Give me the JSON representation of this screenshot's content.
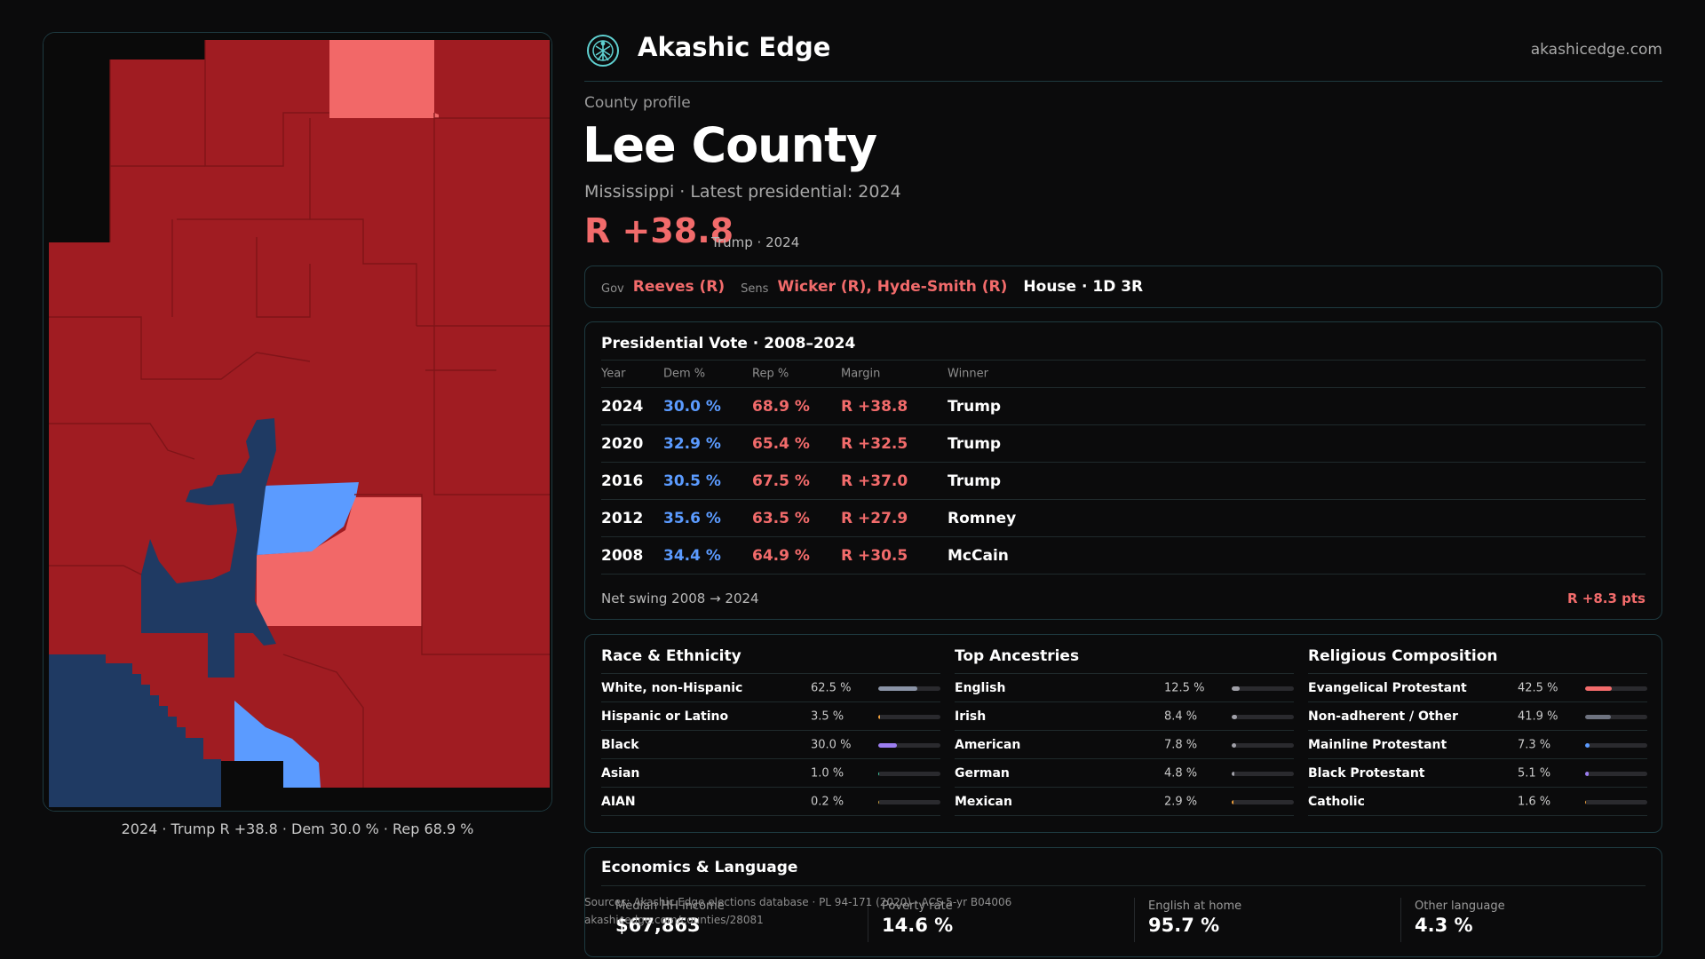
{
  "map": {
    "caption": "2024 · Trump R +38.8 · Dem 30.0 % · Rep 68.9 %",
    "colors": {
      "safe_r": "#a01c22",
      "lean_r": "#f26868",
      "safe_d": "#1f3a63",
      "lean_d": "#5b9bff",
      "background": "#0a0a0a"
    }
  },
  "header": {
    "brand": "Akashic Edge",
    "site": "akashicedge.com",
    "logo_icon": "tree-of-life-icon"
  },
  "profile": {
    "kicker": "County profile",
    "county": "Lee County",
    "subtitle": "Mississippi · Latest presidential: 2024",
    "margin": "R +38.8",
    "margin_note": "Trump · 2024"
  },
  "officials": {
    "gov_label": "Gov",
    "gov": "Reeves (R)",
    "sens_label": "Sens",
    "sens": "Wicker (R), Hyde-Smith (R)",
    "house": "House · 1D 3R"
  },
  "votes": {
    "title": "Presidential Vote · 2008–2024",
    "headers": [
      "Year",
      "Dem %",
      "Rep %",
      "Margin",
      "Winner"
    ],
    "rows": [
      {
        "year": "2024",
        "dem": "30.0 %",
        "rep": "68.9 %",
        "margin": "R +38.8",
        "winner": "Trump"
      },
      {
        "year": "2020",
        "dem": "32.9 %",
        "rep": "65.4 %",
        "margin": "R +32.5",
        "winner": "Trump"
      },
      {
        "year": "2016",
        "dem": "30.5 %",
        "rep": "67.5 %",
        "margin": "R +37.0",
        "winner": "Trump"
      },
      {
        "year": "2012",
        "dem": "35.6 %",
        "rep": "63.5 %",
        "margin": "R +27.9",
        "winner": "Romney"
      },
      {
        "year": "2008",
        "dem": "34.4 %",
        "rep": "64.9 %",
        "margin": "R +30.5",
        "winner": "McCain"
      }
    ],
    "swing_label": "Net swing 2008 → 2024",
    "swing_value": "R +8.3 pts"
  },
  "demographics": [
    {
      "title": "Race & Ethnicity",
      "rows": [
        {
          "label": "White, non-Hispanic",
          "pct": "62.5 %",
          "value": 62.5,
          "color": "#8a93a6"
        },
        {
          "label": "Hispanic or Latino",
          "pct": "3.5 %",
          "value": 3.5,
          "color": "#f0a03c"
        },
        {
          "label": "Black",
          "pct": "30.0 %",
          "value": 30.0,
          "color": "#9b7df0"
        },
        {
          "label": "Asian",
          "pct": "1.0 %",
          "value": 1.0,
          "color": "#3cc8a0"
        },
        {
          "label": "AIAN",
          "pct": "0.2 %",
          "value": 0.2,
          "color": "#c8a03c"
        }
      ]
    },
    {
      "title": "Top Ancestries",
      "rows": [
        {
          "label": "English",
          "pct": "12.5 %",
          "value": 12.5,
          "color": "#a0a0a8"
        },
        {
          "label": "Irish",
          "pct": "8.4 %",
          "value": 8.4,
          "color": "#a0a0a8"
        },
        {
          "label": "American",
          "pct": "7.8 %",
          "value": 7.8,
          "color": "#a0a0a8"
        },
        {
          "label": "German",
          "pct": "4.8 %",
          "value": 4.8,
          "color": "#a0a0a8"
        },
        {
          "label": "Mexican",
          "pct": "2.9 %",
          "value": 2.9,
          "color": "#f0a03c"
        }
      ]
    },
    {
      "title": "Religious Composition",
      "rows": [
        {
          "label": "Evangelical Protestant",
          "pct": "42.5 %",
          "value": 42.5,
          "color": "#f26b6b"
        },
        {
          "label": "Non-adherent / Other",
          "pct": "41.9 %",
          "value": 41.9,
          "color": "#6e7380"
        },
        {
          "label": "Mainline Protestant",
          "pct": "7.3 %",
          "value": 7.3,
          "color": "#5b9bff"
        },
        {
          "label": "Black Protestant",
          "pct": "5.1 %",
          "value": 5.1,
          "color": "#9b7df0"
        },
        {
          "label": "Catholic",
          "pct": "1.6 %",
          "value": 1.6,
          "color": "#f0a03c"
        }
      ]
    }
  ],
  "economics": {
    "title": "Economics & Language",
    "cells": [
      {
        "label": "Median HH income",
        "value": "$67,863"
      },
      {
        "label": "Poverty rate",
        "value": "14.6 %"
      },
      {
        "label": "English at home",
        "value": "95.7 %"
      },
      {
        "label": "Other language",
        "value": "4.3 %"
      }
    ]
  },
  "sources": {
    "line1": "Sources: Akashic Edge elections database · PL 94-171 (2020) · ACS 5-yr B04006",
    "line2": "akashicedge.com/counties/28081"
  }
}
